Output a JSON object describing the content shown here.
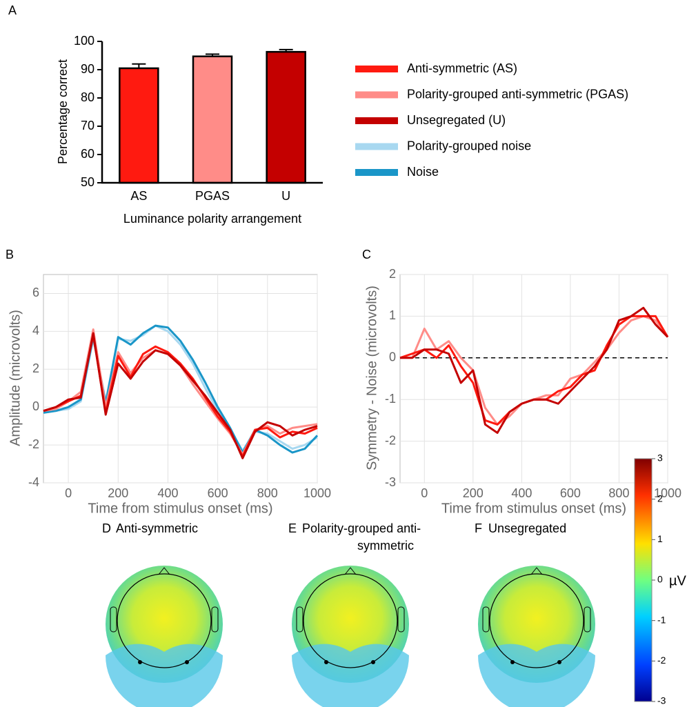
{
  "chart_data": [
    {
      "type": "bar",
      "letter": "A",
      "ylabel": "Percentage correct",
      "xlabel": "Luminance polarity arrangement",
      "categories": [
        "AS",
        "PGAS",
        "U"
      ],
      "values": [
        90.5,
        94.7,
        96.3
      ],
      "errors": [
        1.5,
        0.8,
        0.8
      ],
      "colors": [
        "#ff1a10",
        "#ff8c88",
        "#c40000"
      ],
      "ylim": [
        50,
        100
      ],
      "yticks": [
        50,
        60,
        70,
        80,
        90,
        100
      ]
    },
    {
      "type": "line",
      "letter": "B",
      "ylabel": "Amplitude (microvolts)",
      "xlabel": "Time from stimulus onset (ms)",
      "x": [
        -100,
        -50,
        0,
        50,
        100,
        150,
        200,
        250,
        300,
        350,
        400,
        450,
        500,
        550,
        600,
        650,
        700,
        750,
        800,
        850,
        900,
        950,
        1000
      ],
      "xlim": [
        -100,
        1000
      ],
      "xticks": [
        0,
        200,
        400,
        600,
        800,
        1000
      ],
      "ylim": [
        -4,
        7
      ],
      "yticks": [
        -4,
        -2,
        0,
        2,
        4,
        6
      ],
      "grid": true,
      "series": [
        {
          "name": "Polarity-grouped noise",
          "color": "#a8d8f0",
          "values": [
            -0.3,
            -0.2,
            -0.1,
            0.3,
            3.6,
            0.3,
            3.6,
            3.5,
            3.8,
            4.3,
            4.0,
            3.3,
            2.3,
            1.0,
            -0.2,
            -1.2,
            -2.3,
            -1.3,
            -1.4,
            -1.8,
            -2.2,
            -2.0,
            -1.6
          ]
        },
        {
          "name": "Noise",
          "color": "#1a96c8",
          "values": [
            -0.3,
            -0.2,
            0,
            0.4,
            3.7,
            0.2,
            3.7,
            3.3,
            3.9,
            4.3,
            4.2,
            3.5,
            2.5,
            1.3,
            0,
            -1.1,
            -2.4,
            -1.2,
            -1.5,
            -2.0,
            -2.4,
            -2.2,
            -1.5
          ]
        },
        {
          "name": "Polarity-grouped anti-symmetric (PGAS)",
          "color": "#ff8c88",
          "values": [
            -0.2,
            -0.1,
            0.3,
            0.8,
            4.1,
            0,
            2.9,
            1.8,
            2.6,
            3.0,
            2.8,
            2.2,
            1.2,
            0.3,
            -0.6,
            -1.4,
            -2.5,
            -1.2,
            -1.0,
            -1.4,
            -1.1,
            -1.0,
            -0.9
          ]
        },
        {
          "name": "Anti-symmetric (AS)",
          "color": "#ff1a10",
          "values": [
            -0.2,
            0,
            0.3,
            0.6,
            3.8,
            -0.3,
            2.7,
            1.6,
            2.8,
            3.2,
            2.9,
            2.3,
            1.5,
            0.5,
            -0.5,
            -1.3,
            -2.6,
            -1.2,
            -1.1,
            -1.6,
            -1.3,
            -1.4,
            -1.1
          ]
        },
        {
          "name": "Unsegregated (U)",
          "color": "#c40000",
          "values": [
            -0.2,
            0,
            0.4,
            0.5,
            3.9,
            -0.4,
            2.3,
            1.5,
            2.4,
            3.0,
            2.8,
            2.2,
            1.4,
            0.6,
            -0.3,
            -1.2,
            -2.7,
            -1.3,
            -0.8,
            -1.0,
            -1.5,
            -1.2,
            -1.0
          ]
        }
      ]
    },
    {
      "type": "line",
      "letter": "C",
      "ylabel": "Symmetry - Noise (microvolts)",
      "xlabel": "Time from stimulus onset (ms)",
      "x": [
        -100,
        -50,
        0,
        50,
        100,
        150,
        200,
        250,
        300,
        350,
        400,
        450,
        500,
        550,
        600,
        650,
        700,
        750,
        800,
        850,
        900,
        950,
        1000
      ],
      "xlim": [
        -100,
        1000
      ],
      "xticks": [
        0,
        200,
        400,
        600,
        800,
        1000
      ],
      "ylim": [
        -3,
        2
      ],
      "yticks": [
        -3,
        -2,
        -1,
        0,
        1,
        2
      ],
      "grid": true,
      "hline": 0,
      "series": [
        {
          "name": "Polarity-grouped anti-symmetric (PGAS)",
          "color": "#ff8c88",
          "values": [
            0,
            0,
            0.7,
            0.2,
            0.4,
            0,
            -0.3,
            -1.2,
            -1.6,
            -1.4,
            -1.1,
            -1.0,
            -0.9,
            -0.9,
            -0.5,
            -0.4,
            -0.1,
            0.2,
            0.6,
            0.9,
            1.0,
            0.9,
            0.5
          ]
        },
        {
          "name": "Anti-symmetric (AS)",
          "color": "#ff1a10",
          "values": [
            0,
            0.1,
            0.2,
            0,
            0.3,
            -0.2,
            -0.6,
            -1.5,
            -1.6,
            -1.3,
            -1.1,
            -1.0,
            -1.0,
            -0.8,
            -0.7,
            -0.4,
            -0.3,
            0.3,
            0.8,
            1.0,
            1.0,
            1.0,
            0.5
          ]
        },
        {
          "name": "Unsegregated (U)",
          "color": "#c40000",
          "values": [
            0,
            0,
            0.2,
            0.2,
            0.1,
            -0.6,
            -0.3,
            -1.6,
            -1.8,
            -1.3,
            -1.1,
            -1.0,
            -1.0,
            -1.1,
            -0.8,
            -0.5,
            -0.2,
            0.2,
            0.9,
            1.0,
            1.2,
            0.8,
            0.5
          ]
        }
      ]
    },
    {
      "type": "topomap",
      "maps": [
        {
          "letter": "D",
          "title": [
            "Anti-symmetric"
          ]
        },
        {
          "letter": "E",
          "title": [
            "Polarity-grouped anti-",
            "symmetric"
          ]
        },
        {
          "letter": "F",
          "title": [
            "Unsegregated"
          ]
        }
      ],
      "colorbar": {
        "ylim": [
          -3,
          3
        ],
        "ticks": [
          -3,
          -2,
          -1,
          0,
          1,
          2,
          3
        ],
        "label": "µV"
      }
    }
  ],
  "legend": {
    "entries": [
      {
        "name": "Anti-symmetric (AS)",
        "color": "#ff1a10"
      },
      {
        "name": "Polarity-grouped anti-symmetric (PGAS)",
        "color": "#ff8c88"
      },
      {
        "name": "Unsegregated (U)",
        "color": "#c40000"
      },
      {
        "name": "Polarity-grouped noise",
        "color": "#a8d8f0"
      },
      {
        "name": "Noise",
        "color": "#1a96c8"
      }
    ]
  }
}
